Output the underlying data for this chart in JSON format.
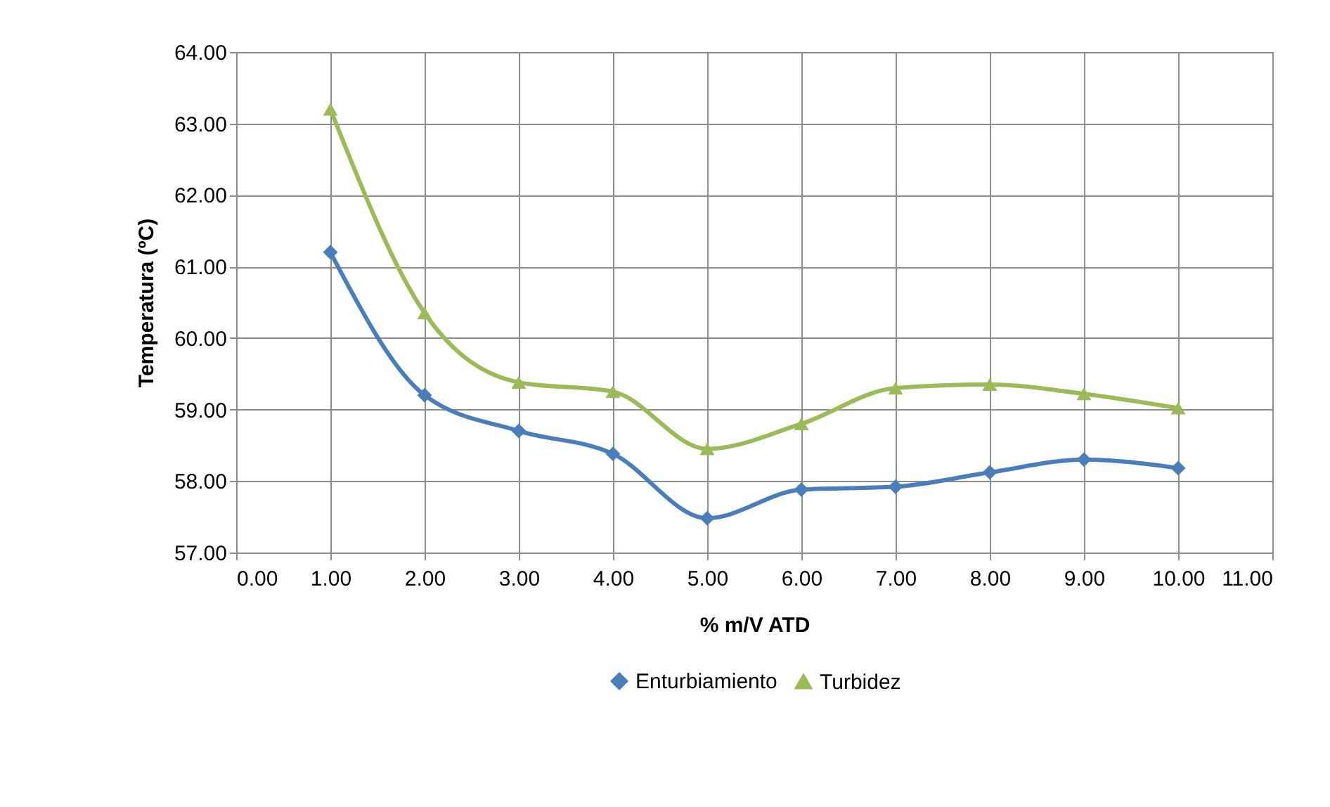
{
  "chart_data": {
    "type": "line",
    "xlabel": "% m/V ATD",
    "ylabel": "Temperatura (ºC)",
    "x": [
      1,
      2,
      3,
      4,
      5,
      6,
      7,
      8,
      9,
      10
    ],
    "series": [
      {
        "name": "Enturbiamiento",
        "color": "#4a7ebb",
        "marker": "diamond",
        "values": [
          61.2,
          59.2,
          58.7,
          58.38,
          57.48,
          57.88,
          57.92,
          58.12,
          58.3,
          58.18
        ]
      },
      {
        "name": "Turbidez",
        "color": "#9bbb59",
        "marker": "triangle",
        "values": [
          63.2,
          60.35,
          59.38,
          59.25,
          58.45,
          58.8,
          59.3,
          59.35,
          59.22,
          59.02
        ]
      }
    ],
    "xlim": [
      0,
      11
    ],
    "ylim": [
      57,
      64
    ],
    "xticks": [
      {
        "value": 0,
        "label": "0.00"
      },
      {
        "value": 1,
        "label": "1.00"
      },
      {
        "value": 2,
        "label": "2.00"
      },
      {
        "value": 3,
        "label": "3.00"
      },
      {
        "value": 4,
        "label": "4.00"
      },
      {
        "value": 5,
        "label": "5.00"
      },
      {
        "value": 6,
        "label": "6.00"
      },
      {
        "value": 7,
        "label": "7.00"
      },
      {
        "value": 8,
        "label": "8.00"
      },
      {
        "value": 9,
        "label": "9.00"
      },
      {
        "value": 10,
        "label": "10.00"
      },
      {
        "value": 11,
        "label": "11.00"
      }
    ],
    "yticks": [
      {
        "value": 57,
        "label": "57.00"
      },
      {
        "value": 58,
        "label": "58.00"
      },
      {
        "value": 59,
        "label": "59.00"
      },
      {
        "value": 60,
        "label": "60.00"
      },
      {
        "value": 61,
        "label": "61.00"
      },
      {
        "value": 62,
        "label": "62.00"
      },
      {
        "value": 63,
        "label": "63.00"
      },
      {
        "value": 64,
        "label": "64.00"
      }
    ],
    "grid": true,
    "legend": "bottom",
    "line_style": "solid"
  }
}
